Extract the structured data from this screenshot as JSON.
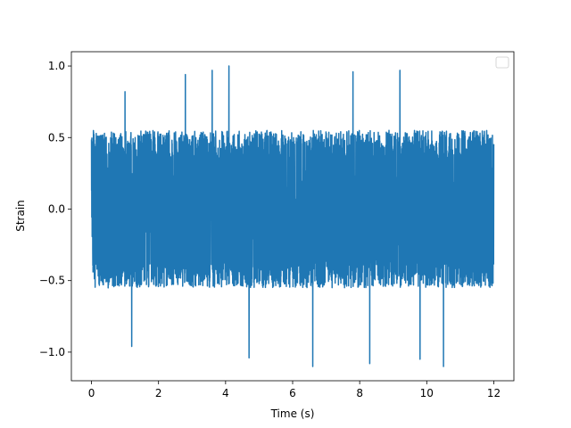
{
  "chart_data": {
    "type": "line",
    "title": "",
    "xlabel": "Time (s)",
    "ylabel": "Strain",
    "xlim": [
      -0.6,
      12.6
    ],
    "ylim": [
      -1.2,
      1.1
    ],
    "xticks": [
      0,
      2,
      4,
      6,
      8,
      10,
      12
    ],
    "xtick_labels": [
      "0",
      "2",
      "4",
      "6",
      "8",
      "10",
      "12"
    ],
    "yticks": [
      -1.0,
      -0.5,
      0.0,
      0.5,
      1.0
    ],
    "ytick_labels": [
      "−1.0",
      "−0.5",
      "0.0",
      "0.5",
      "1.0"
    ],
    "grid": false,
    "legend": {
      "placement": "upper-right",
      "entries": []
    },
    "series": [
      {
        "color": "#1f77b4",
        "x_range": [
          0,
          12
        ],
        "typical_band": [
          -0.5,
          0.5
        ],
        "min": -1.1,
        "max": 1.0,
        "peaks": [
          {
            "x": 1.0,
            "y": 0.82
          },
          {
            "x": 2.8,
            "y": 0.94
          },
          {
            "x": 3.6,
            "y": 0.97
          },
          {
            "x": 4.1,
            "y": 1.0
          },
          {
            "x": 7.8,
            "y": 0.96
          },
          {
            "x": 9.2,
            "y": 0.97
          },
          {
            "x": 4.7,
            "y": -1.04
          },
          {
            "x": 6.6,
            "y": -1.1
          },
          {
            "x": 8.3,
            "y": -1.08
          },
          {
            "x": 9.8,
            "y": -1.05
          },
          {
            "x": 10.5,
            "y": -1.1
          },
          {
            "x": 1.2,
            "y": -0.96
          }
        ]
      }
    ]
  }
}
